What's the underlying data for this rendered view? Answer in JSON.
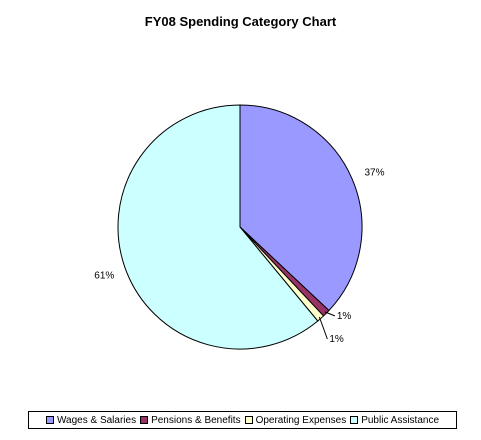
{
  "chart_data": {
    "type": "pie",
    "title": "FY08 Spending Category Chart",
    "slices": [
      {
        "name": "Wages & Salaries",
        "value": 37,
        "label": "37%",
        "color": "#9999ff"
      },
      {
        "name": "Pensions & Benefits",
        "value": 1,
        "label": "1%",
        "color": "#993366"
      },
      {
        "name": "Operating Expenses",
        "value": 1,
        "label": "1%",
        "color": "#ffffcc"
      },
      {
        "name": "Public Assistance",
        "value": 61,
        "label": "61%",
        "color": "#ccffff"
      }
    ],
    "legend_position": "bottom"
  }
}
